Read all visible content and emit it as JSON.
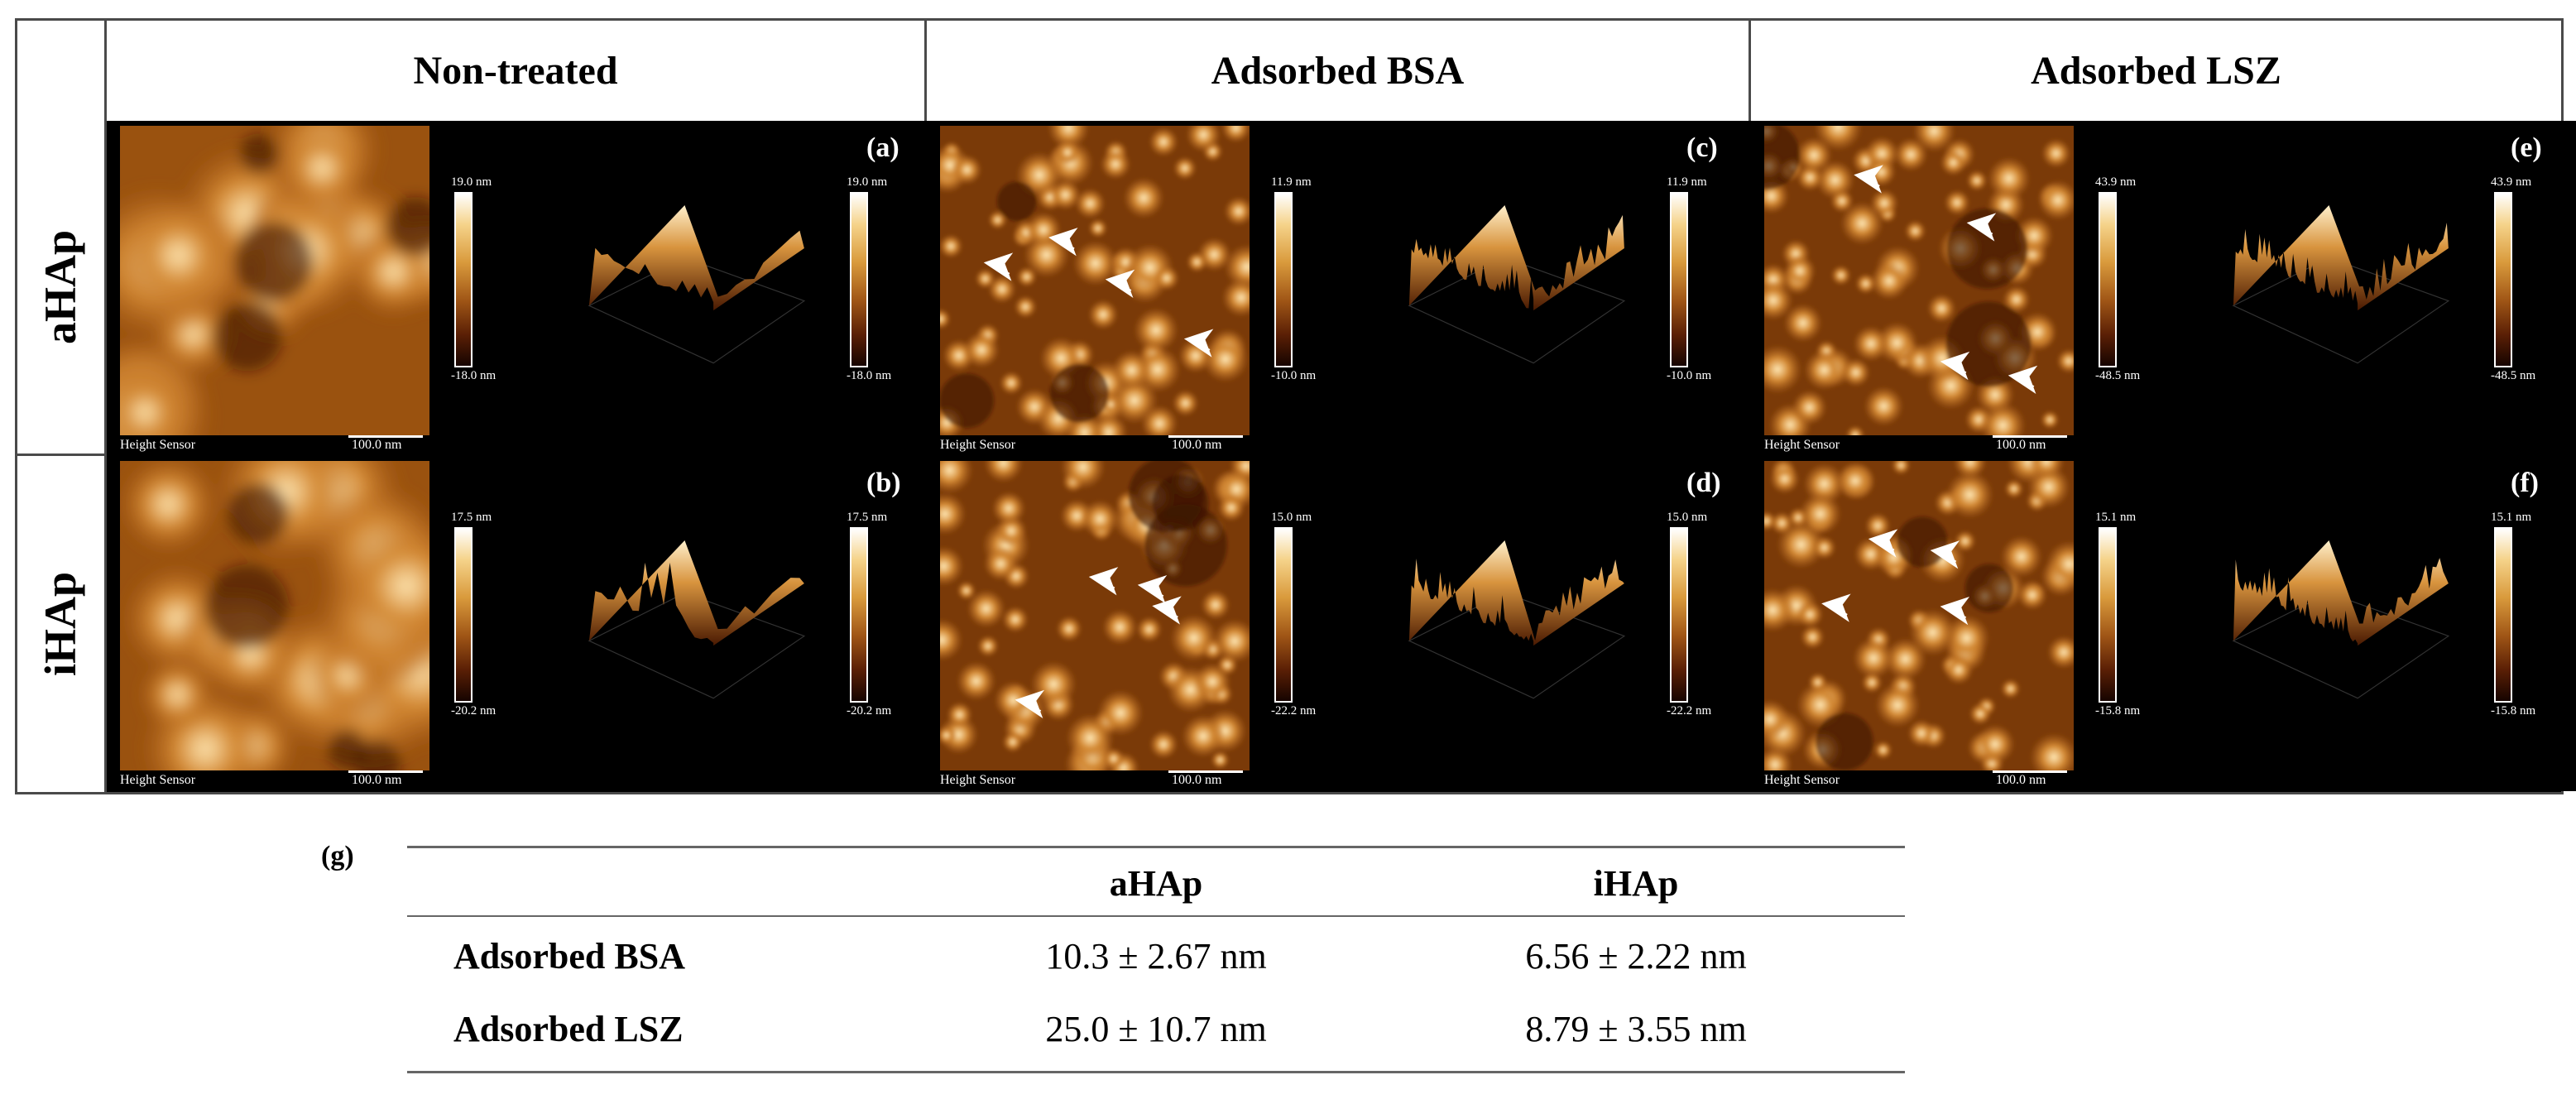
{
  "grid": {
    "columns": [
      "Non-treated",
      "Adsorbed BSA",
      "Adsorbed LSZ"
    ],
    "rows": [
      "aHAp",
      "iHAp"
    ],
    "panels": [
      {
        "label": "(a)",
        "max": "19.0 nm",
        "min": "-18.0 nm",
        "max3d": "19.0 nm",
        "min3d": "-18.0 nm",
        "caption": "Height Sensor",
        "scale": "100.0 nm"
      },
      {
        "label": "(c)",
        "max": "11.9 nm",
        "min": "-10.0 nm",
        "max3d": "11.9 nm",
        "min3d": "-10.0 nm",
        "caption": "Height Sensor",
        "scale": "100.0 nm"
      },
      {
        "label": "(e)",
        "max": "43.9 nm",
        "min": "-48.5 nm",
        "max3d": "43.9 nm",
        "min3d": "-48.5 nm",
        "caption": "Height Sensor",
        "scale": "100.0 nm"
      },
      {
        "label": "(b)",
        "max": "17.5 nm",
        "min": "-20.2 nm",
        "max3d": "17.5 nm",
        "min3d": "-20.2 nm",
        "caption": "Height Sensor",
        "scale": "100.0 nm"
      },
      {
        "label": "(d)",
        "max": "15.0 nm",
        "min": "-22.2 nm",
        "max3d": "15.0 nm",
        "min3d": "-22.2 nm",
        "caption": "Height Sensor",
        "scale": "100.0 nm"
      },
      {
        "label": "(f)",
        "max": "15.1 nm",
        "min": "-15.8 nm",
        "max3d": "15.1 nm",
        "min3d": "-15.8 nm",
        "caption": "Height Sensor",
        "scale": "100.0 nm"
      }
    ]
  },
  "table": {
    "label": "(g)",
    "headers": [
      "",
      "aHAp",
      "iHAp"
    ],
    "rows": [
      {
        "name": "Adsorbed BSA",
        "a": "10.3 ± 2.67 nm",
        "i": "6.56 ± 2.22 nm"
      },
      {
        "name": "Adsorbed LSZ",
        "a": "25.0 ± 10.7 nm",
        "i": "8.79 ± 3.55 nm"
      }
    ]
  },
  "colors": {
    "afm_dark": "#2a0a00",
    "afm_mid": "#b46a22",
    "afm_light": "#ffe2a8",
    "border": "#4a4a4a"
  }
}
